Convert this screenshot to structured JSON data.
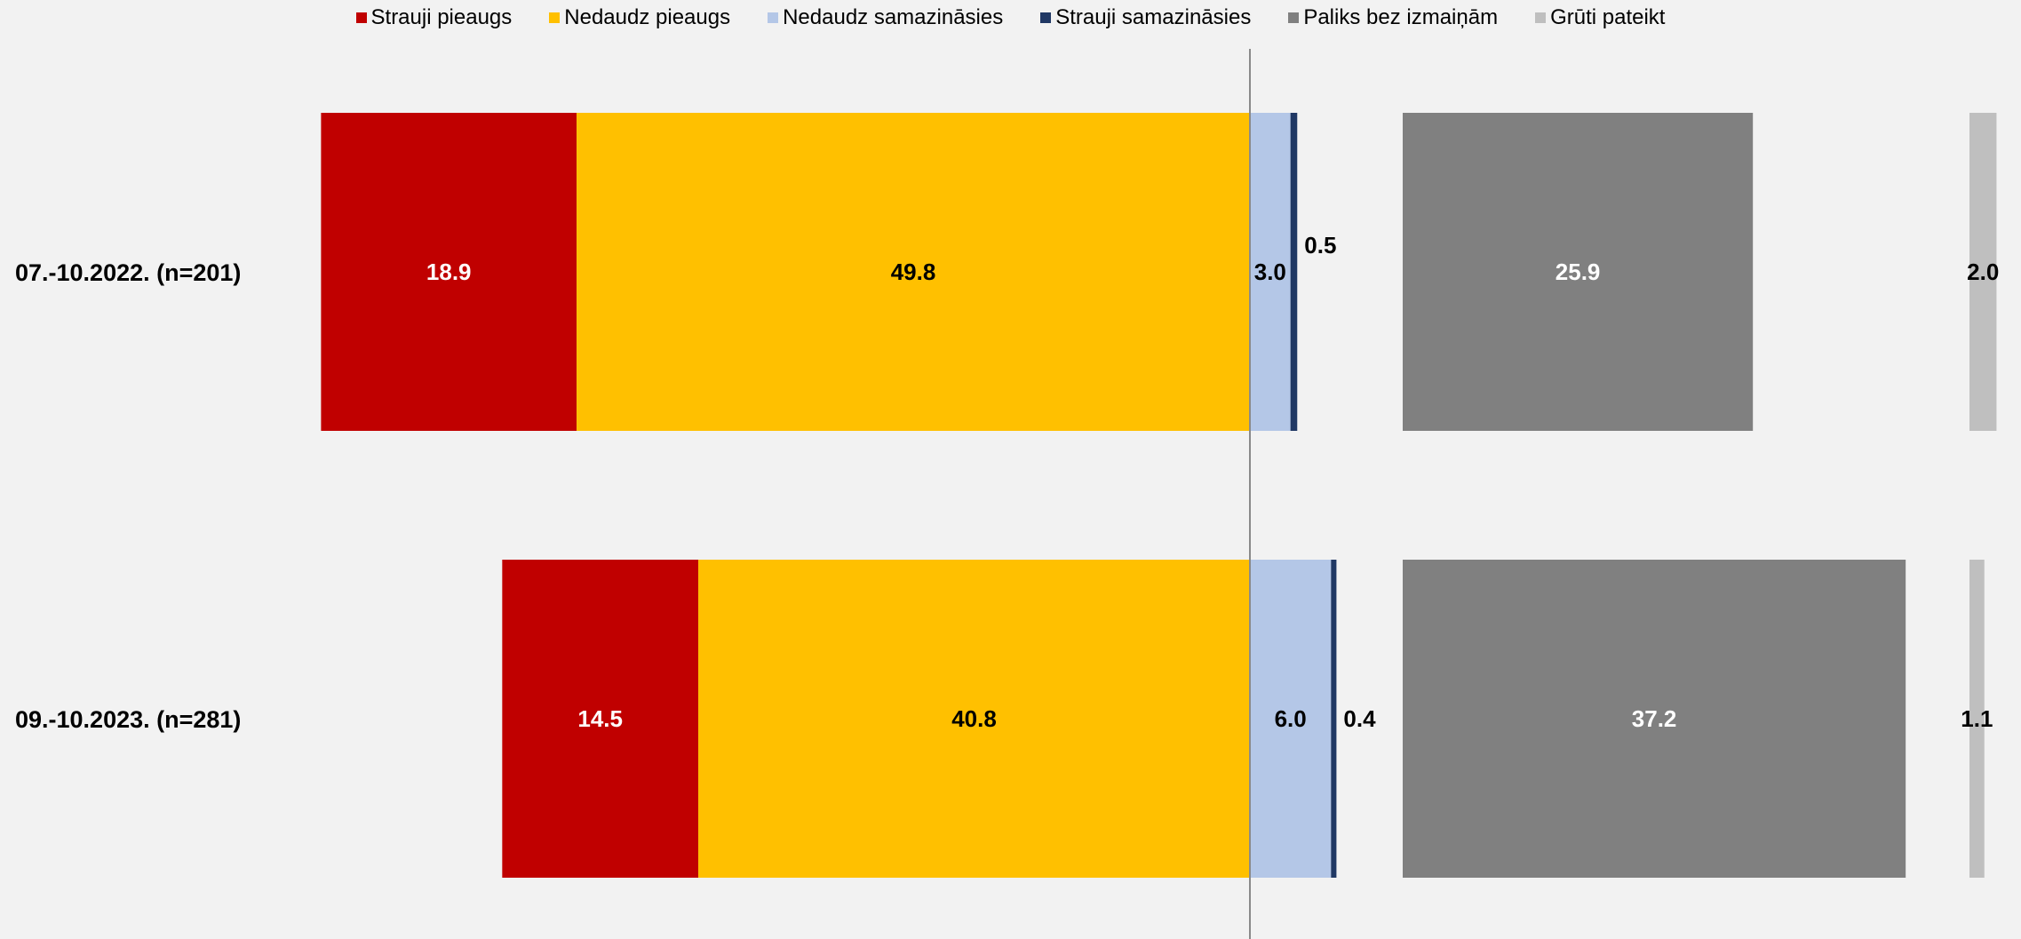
{
  "chart_data": {
    "type": "bar",
    "orientation": "horizontal-diverging",
    "legend_position": "top",
    "grid": false,
    "categories": [
      "07.-10.2022. (n=201)",
      "09.-10.2023. (n=281)"
    ],
    "series": [
      {
        "name": "Strauji pieaugs",
        "color": "#c00000",
        "label_color": "#ffffff",
        "values": [
          18.9,
          14.5
        ]
      },
      {
        "name": "Nedaudz pieaugs",
        "color": "#ffc000",
        "label_color": "#000000",
        "values": [
          49.8,
          40.8
        ]
      },
      {
        "name": "Nedaudz samazināsies",
        "color": "#b4c7e7",
        "label_color": "#000000",
        "values": [
          3.0,
          6.0
        ]
      },
      {
        "name": "Strauji samazināsies",
        "color": "#203864",
        "label_color": "#000000",
        "values": [
          0.5,
          0.4
        ]
      },
      {
        "name": "Paliks bez izmaiņām",
        "color": "#808080",
        "label_color": "#ffffff",
        "values": [
          25.9,
          37.2
        ]
      },
      {
        "name": "Grūti pateikt",
        "color": "#bfbfbf",
        "label_color": "#000000",
        "values": [
          2.0,
          1.1
        ]
      }
    ],
    "value_labels": [
      [
        "18.9",
        "49.8",
        "3.0",
        "0.5",
        "25.9",
        "2.0"
      ],
      [
        "14.5",
        "40.8",
        "6.0",
        "0.4",
        "37.2",
        "1.1"
      ]
    ]
  }
}
